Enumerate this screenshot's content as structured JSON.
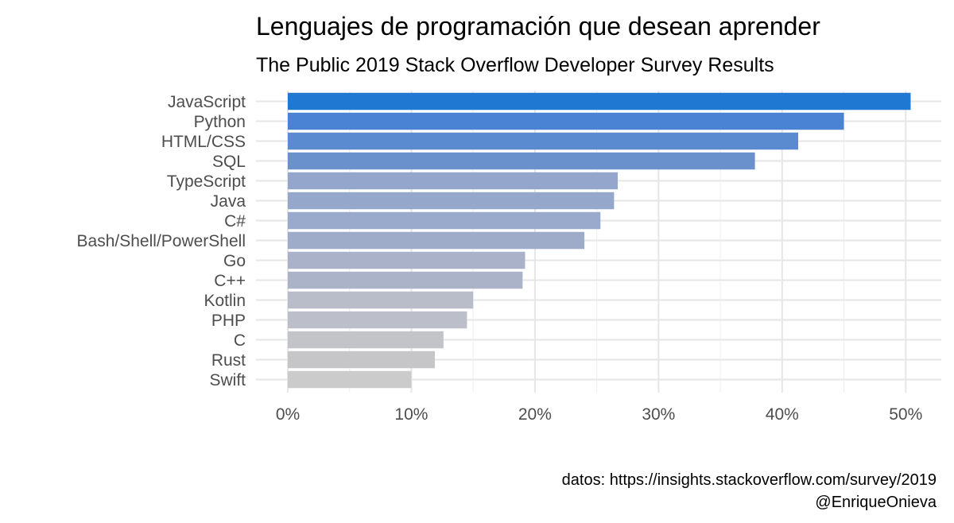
{
  "chart_data": {
    "type": "bar",
    "orientation": "horizontal",
    "title": "Lenguajes de programación que desean aprender",
    "subtitle": "The Public 2019 Stack Overflow Developer Survey Results",
    "categories": [
      "JavaScript",
      "Python",
      "HTML/CSS",
      "SQL",
      "TypeScript",
      "Java",
      "C#",
      "Bash/Shell/PowerShell",
      "Go",
      "C++",
      "Kotlin",
      "PHP",
      "C",
      "Rust",
      "Swift"
    ],
    "values": [
      50.4,
      45.0,
      41.3,
      37.8,
      26.7,
      26.4,
      25.3,
      24.0,
      19.2,
      19.0,
      15.0,
      14.5,
      12.6,
      11.9,
      10.0
    ],
    "colors": [
      "#1f78d1",
      "#4a83d3",
      "#5a8ad0",
      "#6a91cc",
      "#94a6cc",
      "#96a7cc",
      "#9aaacc",
      "#9eabc9",
      "#a9b2c8",
      "#aab3c8",
      "#b9bdc9",
      "#bcbfc9",
      "#c3c4c8",
      "#c6c6c9",
      "#cbcbcb"
    ],
    "xlim": [
      0,
      52
    ],
    "x_ticks": [
      0,
      10,
      20,
      30,
      40,
      50
    ],
    "x_tick_labels": [
      "0%",
      "10%",
      "20%",
      "30%",
      "40%",
      "50%"
    ],
    "xlabel": "",
    "ylabel": "",
    "grid": true,
    "legend": "none"
  },
  "caption": {
    "line1": "datos: https://insights.stackoverflow.com/survey/2019",
    "line2": "@EnriqueOnieva"
  }
}
